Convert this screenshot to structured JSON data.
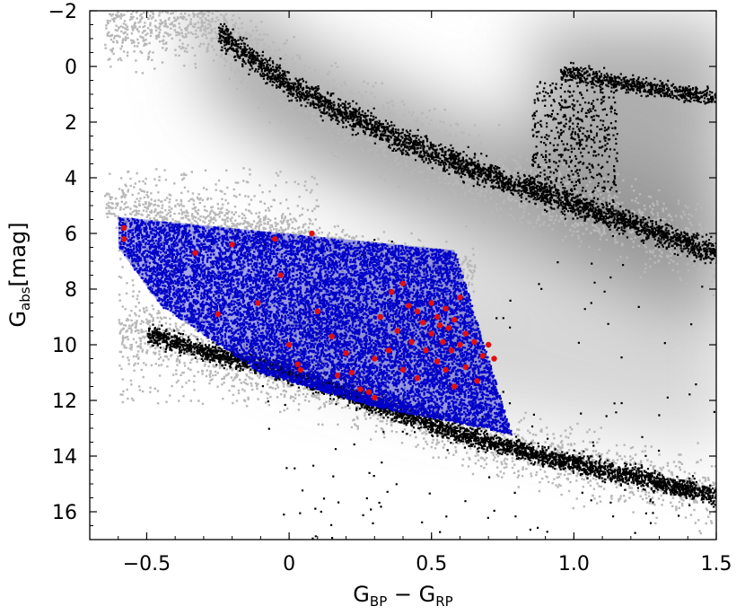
{
  "chart_data": {
    "type": "scatter",
    "xlabel": "G_BP − G_RP",
    "ylabel": "G_abs [mag]",
    "xlim": [
      -0.7,
      1.5
    ],
    "ylim": [
      17,
      -2
    ],
    "y_inverted": true,
    "grid": false,
    "x_ticks": [
      -0.5,
      0,
      0.5,
      1.0,
      1.5
    ],
    "x_tick_labels": [
      "−0.5",
      "0",
      "0.5",
      "1.0",
      "1.5"
    ],
    "y_ticks": [
      -2,
      0,
      2,
      4,
      6,
      8,
      10,
      12,
      14,
      16
    ],
    "y_tick_labels": [
      "−2",
      "0",
      "2",
      "4",
      "6",
      "8",
      "10",
      "12",
      "14",
      "16"
    ],
    "layers": [
      {
        "kind": "density-background",
        "color": "#8c8c8c"
      },
      {
        "kind": "scatter-halo",
        "color": "#b8b8b8"
      },
      {
        "kind": "scatter-sequence",
        "color": "#000000"
      },
      {
        "kind": "selection-region",
        "color": "#0000c8"
      },
      {
        "kind": "highlighted-stars",
        "color": "#e01010"
      }
    ],
    "selection_polygon": [
      [
        -0.6,
        5.4
      ],
      [
        0.58,
        6.6
      ],
      [
        0.78,
        13.2
      ],
      [
        0.65,
        12.9
      ],
      [
        0.3,
        12.2
      ],
      [
        -0.1,
        11.0
      ],
      [
        -0.45,
        8.6
      ],
      [
        -0.6,
        6.5
      ]
    ],
    "lines": {
      "main_sequence": [
        [
          -0.5,
          9.6
        ],
        [
          -0.3,
          10.2
        ],
        [
          0.0,
          11.0
        ],
        [
          0.3,
          12.1
        ],
        [
          0.6,
          13.2
        ],
        [
          0.9,
          14.0
        ],
        [
          1.2,
          14.7
        ],
        [
          1.5,
          15.4
        ]
      ],
      "upper_sequence": [
        [
          -0.3,
          -1.6
        ],
        [
          0.0,
          0.7
        ],
        [
          0.3,
          2.2
        ],
        [
          0.6,
          3.5
        ],
        [
          0.9,
          4.6
        ],
        [
          1.2,
          5.6
        ],
        [
          1.5,
          6.7
        ]
      ],
      "giant_branch": [
        [
          0.95,
          0.2
        ],
        [
          1.1,
          0.4
        ],
        [
          1.3,
          0.8
        ],
        [
          1.5,
          1.1
        ]
      ],
      "white_dwarf_band": [
        [
          -0.6,
          4.9
        ],
        [
          -0.3,
          5.4
        ],
        [
          0.0,
          6.0
        ],
        [
          0.3,
          6.7
        ],
        [
          0.58,
          7.2
        ]
      ]
    },
    "highlighted_stars": [
      [
        -0.58,
        5.8
      ],
      [
        -0.58,
        6.2
      ],
      [
        -0.33,
        6.7
      ],
      [
        -0.25,
        8.9
      ],
      [
        -0.2,
        6.4
      ],
      [
        -0.11,
        8.5
      ],
      [
        -0.05,
        6.2
      ],
      [
        -0.03,
        7.5
      ],
      [
        0.0,
        10.0
      ],
      [
        0.03,
        10.7
      ],
      [
        0.04,
        10.9
      ],
      [
        0.08,
        6.0
      ],
      [
        0.1,
        8.8
      ],
      [
        0.15,
        9.7
      ],
      [
        0.17,
        11.1
      ],
      [
        0.2,
        10.3
      ],
      [
        0.22,
        11.0
      ],
      [
        0.25,
        11.6
      ],
      [
        0.28,
        11.7
      ],
      [
        0.3,
        11.9
      ],
      [
        0.3,
        10.5
      ],
      [
        0.32,
        9.0
      ],
      [
        0.35,
        10.2
      ],
      [
        0.36,
        8.1
      ],
      [
        0.38,
        9.5
      ],
      [
        0.4,
        7.8
      ],
      [
        0.4,
        10.9
      ],
      [
        0.42,
        8.6
      ],
      [
        0.43,
        9.9
      ],
      [
        0.45,
        8.8
      ],
      [
        0.45,
        11.2
      ],
      [
        0.47,
        9.2
      ],
      [
        0.48,
        10.2
      ],
      [
        0.5,
        8.5
      ],
      [
        0.5,
        9.6
      ],
      [
        0.52,
        9.0
      ],
      [
        0.52,
        10.6
      ],
      [
        0.53,
        9.3
      ],
      [
        0.54,
        9.9
      ],
      [
        0.55,
        8.7
      ],
      [
        0.55,
        10.9
      ],
      [
        0.56,
        9.4
      ],
      [
        0.57,
        10.2
      ],
      [
        0.58,
        9.1
      ],
      [
        0.58,
        11.5
      ],
      [
        0.6,
        10.0
      ],
      [
        0.6,
        8.3
      ],
      [
        0.62,
        9.6
      ],
      [
        0.62,
        10.8
      ],
      [
        0.65,
        9.9
      ],
      [
        0.66,
        11.3
      ],
      [
        0.68,
        10.4
      ],
      [
        0.7,
        10.0
      ],
      [
        0.72,
        10.5
      ]
    ]
  }
}
